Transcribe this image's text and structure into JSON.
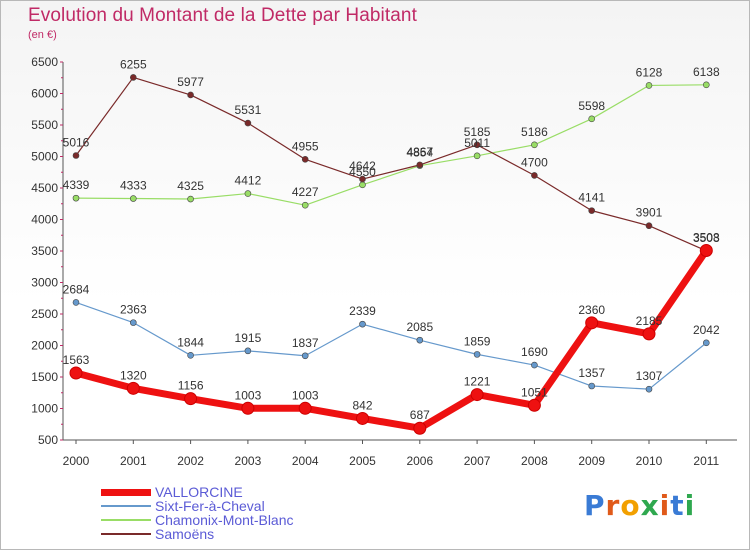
{
  "header": {
    "title": "Evolution du Montant de la Dette par Habitant",
    "subtitle": "(en €)"
  },
  "logo": {
    "text": "Proxiti"
  },
  "chart_data": {
    "type": "line",
    "title": "Evolution du Montant de la Dette par Habitant",
    "subtitle": "(en €)",
    "xlabel": "",
    "ylabel": "",
    "x": [
      "2000",
      "2001",
      "2002",
      "2003",
      "2004",
      "2005",
      "2006",
      "2007",
      "2008",
      "2009",
      "2010",
      "2011"
    ],
    "ylim": [
      500,
      6500
    ],
    "yticks": [
      500,
      1000,
      1500,
      2000,
      2500,
      3000,
      3500,
      4000,
      4500,
      5000,
      5500,
      6000,
      6500
    ],
    "grid": false,
    "legend_position": "bottom-left",
    "series": [
      {
        "name": "VALLORCINE",
        "color": "#ee1111",
        "values": [
          1563,
          1320,
          1156,
          1003,
          1003,
          842,
          687,
          1221,
          1051,
          2360,
          2185,
          3508
        ],
        "labels": [
          "1563",
          "1320",
          "1156",
          "1003",
          "1003",
          "842",
          "687",
          "1221",
          "1051",
          "2360",
          "2185",
          "3508"
        ]
      },
      {
        "name": "Sixt-Fer-à-Cheval",
        "color": "#6699cc",
        "values": [
          2684,
          2363,
          1844,
          1915,
          1837,
          2339,
          2085,
          1859,
          1690,
          1357,
          1307,
          2042
        ],
        "labels": [
          "2684",
          "2363",
          "1844",
          "1915",
          "1837",
          "2339",
          "2085",
          "1859",
          "1690",
          "1357",
          "1307",
          "2042"
        ]
      },
      {
        "name": "Chamonix-Mont-Blanc",
        "color": "#99dd66",
        "values": [
          4339,
          4333,
          4325,
          4412,
          4227,
          4550,
          4854,
          5011,
          5186,
          5598,
          6128,
          6138
        ],
        "labels": [
          "4339",
          "4333",
          "4325",
          "4412",
          "4227",
          "4550",
          "4854",
          "5011",
          "5186",
          "5598",
          "6128",
          "6138"
        ]
      },
      {
        "name": "Samoëns",
        "color": "#7a2a2a",
        "values": [
          5016,
          6255,
          5977,
          5531,
          4955,
          4642,
          4867,
          5185,
          4700,
          4141,
          3901,
          3503
        ],
        "labels": [
          "5016",
          "6255",
          "5977",
          "5531",
          "4955",
          "4642",
          "4867",
          "5185",
          "4700",
          "4141",
          "3901",
          "3503"
        ]
      }
    ]
  }
}
